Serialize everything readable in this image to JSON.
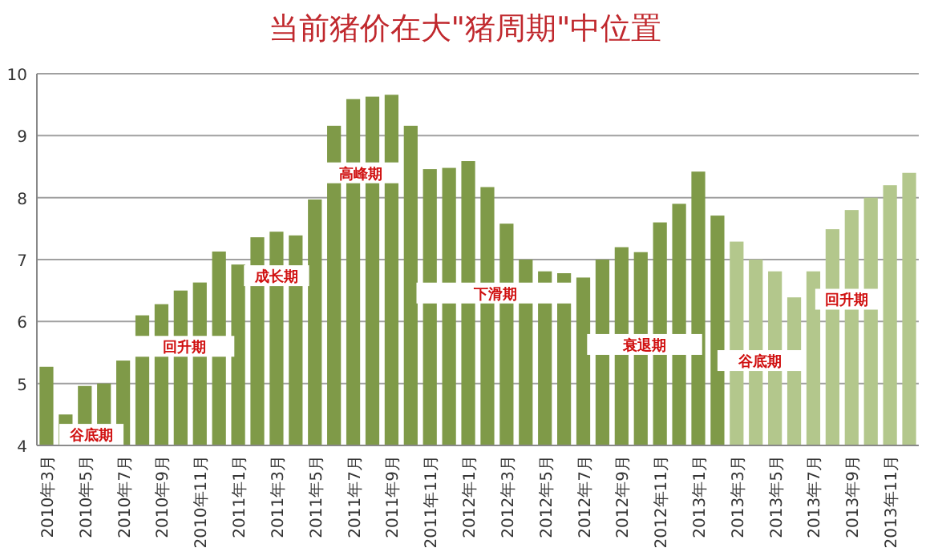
{
  "chart_data": {
    "type": "bar",
    "title": "当前猪价在大\"猪周期\"中位置",
    "categories": [
      "2010年3月",
      null,
      "2010年5月",
      null,
      "2010年7月",
      null,
      "2010年9月",
      null,
      "2010年11月",
      null,
      "2011年1月",
      null,
      "2011年3月",
      null,
      "2011年5月",
      null,
      "2011年7月",
      null,
      "2011年9月",
      null,
      "2011年11月",
      null,
      "2012年1月",
      null,
      "2012年3月",
      null,
      "2012年5月",
      null,
      "2012年7月",
      null,
      "2012年9月",
      null,
      "2012年11月",
      null,
      "2013年1月",
      null,
      "2013年3月",
      null,
      "2013年5月",
      null,
      "2013年7月",
      null,
      "2013年9月",
      null,
      "2013年11月",
      null
    ],
    "values": [
      5.27,
      4.5,
      4.96,
      5.0,
      5.37,
      6.1,
      6.28,
      6.5,
      6.63,
      7.13,
      6.92,
      7.36,
      7.45,
      7.39,
      7.97,
      9.16,
      9.59,
      9.63,
      9.66,
      9.16,
      8.46,
      8.48,
      8.59,
      8.17,
      7.58,
      7.0,
      6.81,
      6.78,
      6.71,
      7.0,
      7.2,
      7.12,
      7.6,
      7.9,
      8.42,
      7.71,
      7.29,
      7.0,
      6.81,
      6.39,
      6.81,
      7.49,
      7.8,
      8.0,
      8.2,
      8.4
    ],
    "colors": [
      "#7f9a48",
      "#7f9a48",
      "#7f9a48",
      "#7f9a48",
      "#7f9a48",
      "#7f9a48",
      "#7f9a48",
      "#7f9a48",
      "#7f9a48",
      "#7f9a48",
      "#7f9a48",
      "#7f9a48",
      "#7f9a48",
      "#7f9a48",
      "#7f9a48",
      "#7f9a48",
      "#7f9a48",
      "#7f9a48",
      "#7f9a48",
      "#7f9a48",
      "#7f9a48",
      "#7f9a48",
      "#7f9a48",
      "#7f9a48",
      "#7f9a48",
      "#7f9a48",
      "#7f9a48",
      "#7f9a48",
      "#7f9a48",
      "#7f9a48",
      "#7f9a48",
      "#7f9a48",
      "#7f9a48",
      "#7f9a48",
      "#7f9a48",
      "#7f9a48",
      "#b3c78c",
      "#b3c78c",
      "#b3c78c",
      "#b3c78c",
      "#b3c78c",
      "#b3c78c",
      "#b3c78c",
      "#b3c78c",
      "#b3c78c",
      "#b3c78c"
    ],
    "ylim": [
      4,
      10
    ],
    "yticks": [
      4,
      5,
      6,
      7,
      8,
      9,
      10
    ],
    "grid": "y",
    "annotations": [
      "谷底期",
      "回升期",
      "成长期",
      "高峰期",
      "下滑期",
      "衰退期",
      "谷底期",
      "回升期"
    ]
  }
}
